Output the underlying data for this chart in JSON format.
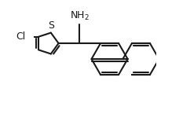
{
  "background_color": "#ffffff",
  "line_color": "#1a1a1a",
  "line_width": 1.5,
  "dbo": 0.018,
  "font_size": 9,
  "xlim": [
    -0.05,
    1.0
  ],
  "ylim": [
    0.0,
    1.0
  ]
}
